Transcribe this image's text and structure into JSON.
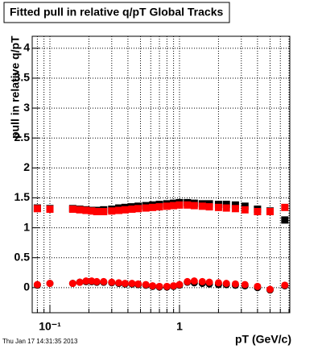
{
  "chart_data": {
    "type": "scatter",
    "title": "Fitted pull in relative q/pT  Global Tracks",
    "x_label": "pT (GeV/c)",
    "y_label": "pull in relative q/pT",
    "x_log": true,
    "grid": true,
    "xlim": [
      0.073,
      7.1
    ],
    "ylim": [
      -0.42,
      4.2
    ],
    "xticks": [
      {
        "value": 0.1,
        "label": "10⁻¹"
      },
      1
    ],
    "xminor_ticks": [
      0.08,
      0.09,
      0.2,
      0.3,
      0.4,
      0.5,
      0.6,
      0.7,
      0.8,
      0.9,
      2,
      3,
      4,
      5,
      6,
      7
    ],
    "yticks": [
      0,
      0.5,
      1,
      1.5,
      2,
      2.5,
      3,
      3.5,
      4
    ],
    "x": [
      0.08,
      0.1,
      0.15,
      0.17,
      0.19,
      0.21,
      0.23,
      0.26,
      0.3,
      0.34,
      0.38,
      0.43,
      0.48,
      0.55,
      0.62,
      0.7,
      0.8,
      0.9,
      1.0,
      1.15,
      1.3,
      1.5,
      1.7,
      2.0,
      2.3,
      2.7,
      3.2,
      4.0,
      5.0,
      6.5
    ],
    "series": [
      {
        "color": "#000000",
        "marker": "square",
        "values": [
          1.33,
          1.32,
          1.32,
          1.31,
          1.3,
          1.29,
          1.29,
          1.3,
          1.31,
          1.33,
          1.34,
          1.35,
          1.36,
          1.37,
          1.38,
          1.39,
          1.4,
          1.41,
          1.42,
          1.42,
          1.41,
          1.4,
          1.4,
          1.39,
          1.39,
          1.38,
          1.36,
          1.31,
          1.28,
          1.13
        ]
      },
      {
        "color": "#000000",
        "marker": "circle",
        "values": [
          0.04,
          0.07,
          0.07,
          0.09,
          0.1,
          0.1,
          0.09,
          0.09,
          0.08,
          0.07,
          0.06,
          0.06,
          0.05,
          0.04,
          0.02,
          0.01,
          0.01,
          0.02,
          0.04,
          0.09,
          0.08,
          0.07,
          0.06,
          0.05,
          0.05,
          0.04,
          0.03,
          0.0,
          -0.04,
          0.03
        ]
      },
      {
        "color": "#ff0000",
        "marker": "square",
        "values": [
          1.32,
          1.31,
          1.31,
          1.3,
          1.29,
          1.28,
          1.27,
          1.27,
          1.28,
          1.29,
          1.3,
          1.31,
          1.32,
          1.33,
          1.34,
          1.35,
          1.36,
          1.37,
          1.38,
          1.38,
          1.37,
          1.36,
          1.35,
          1.34,
          1.33,
          1.32,
          1.3,
          1.27,
          1.27,
          1.34
        ]
      },
      {
        "color": "#ff0000",
        "marker": "circle",
        "values": [
          0.05,
          0.07,
          0.07,
          0.09,
          0.11,
          0.11,
          0.1,
          0.1,
          0.09,
          0.08,
          0.07,
          0.07,
          0.06,
          0.05,
          0.03,
          0.02,
          0.02,
          0.03,
          0.05,
          0.1,
          0.11,
          0.1,
          0.09,
          0.08,
          0.07,
          0.06,
          0.05,
          0.02,
          -0.03,
          0.04
        ]
      }
    ]
  },
  "footer": {
    "timestamp": "Thu Jan 17 14:31:35 2013"
  }
}
